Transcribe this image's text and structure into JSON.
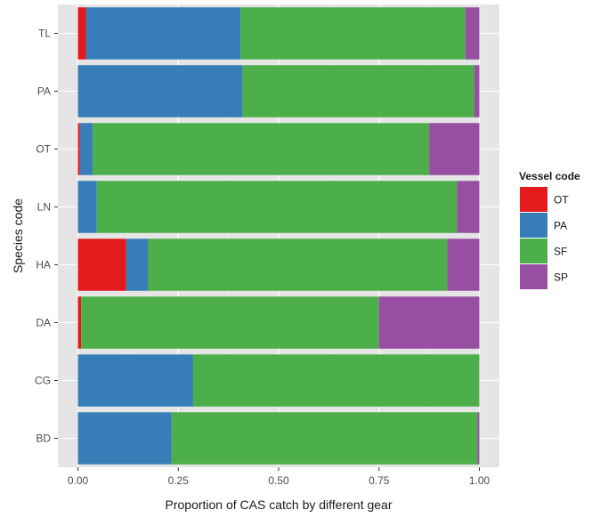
{
  "chart_data": {
    "type": "bar",
    "orientation": "horizontal",
    "stacked": true,
    "xlabel": "Proportion of CAS catch by different gear",
    "ylabel": "Species code",
    "xlim": [
      0,
      1
    ],
    "x_ticks": [
      0,
      0.25,
      0.5,
      0.75,
      1
    ],
    "x_tick_labels": [
      "0.00",
      "0.25",
      "0.50",
      "0.75",
      "1.00"
    ],
    "grid": true,
    "legend_position": "right",
    "legend_title": "Vessel code",
    "categories": [
      "BD",
      "CG",
      "DA",
      "HA",
      "LN",
      "OT",
      "PA",
      "TL"
    ],
    "series": [
      {
        "name": "OT",
        "color": "#e41a1c",
        "values": [
          0.0,
          0.0,
          0.008,
          0.12,
          0.0,
          0.005,
          0.0,
          0.02
        ]
      },
      {
        "name": "PA",
        "color": "#377eb8",
        "values": [
          0.233,
          0.287,
          0.0,
          0.055,
          0.047,
          0.032,
          0.41,
          0.385
        ]
      },
      {
        "name": "SF",
        "color": "#4daf4a",
        "values": [
          0.762,
          0.713,
          0.742,
          0.745,
          0.897,
          0.838,
          0.577,
          0.56
        ]
      },
      {
        "name": "SP",
        "color": "#984ea3",
        "values": [
          0.005,
          0.0,
          0.25,
          0.08,
          0.056,
          0.125,
          0.013,
          0.035
        ]
      }
    ]
  }
}
